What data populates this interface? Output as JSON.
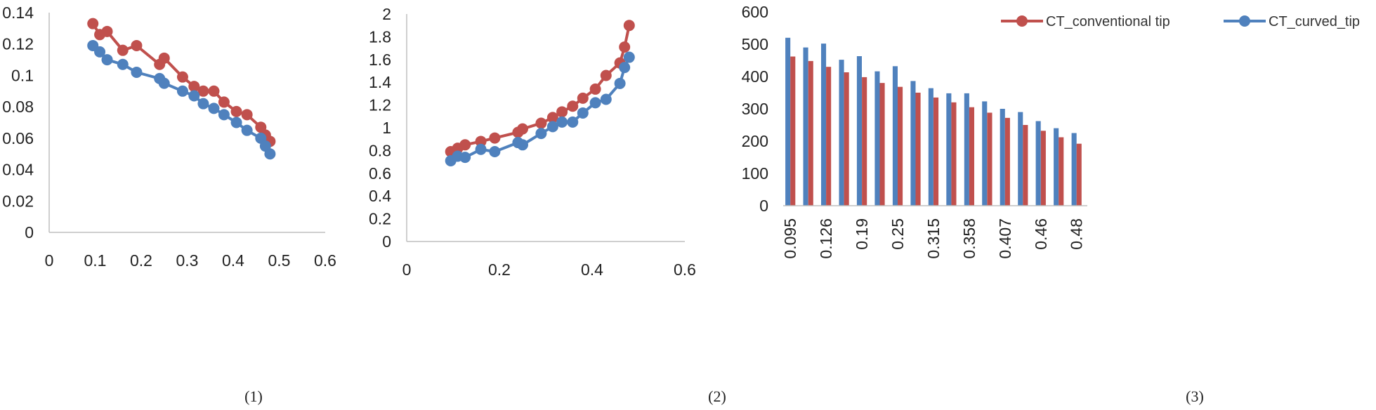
{
  "colors": {
    "conventional": "#C0504D",
    "curved": "#4F81BD",
    "axis": "#BFBFBF",
    "text": "#222222"
  },
  "chart_data": [
    {
      "type": "line",
      "caption": "(1)",
      "xlim": [
        0,
        0.6
      ],
      "ylim": [
        0,
        0.14
      ],
      "xticks": [
        0,
        0.1,
        0.2,
        0.3,
        0.4,
        0.5,
        0.6
      ],
      "xtick_labels": [
        "0",
        "0.1",
        "0.2",
        "0.3",
        "0.4",
        "0.5",
        "0.6"
      ],
      "yticks": [
        0,
        0.02,
        0.04,
        0.06,
        0.08,
        0.1,
        0.12,
        0.14
      ],
      "ytick_labels": [
        "0",
        "0.02",
        "0.04",
        "0.06",
        "0.08",
        "0.1",
        "0.12",
        "0.14"
      ],
      "series": [
        {
          "color": "#C0504D",
          "points": [
            [
              0.095,
              0.133
            ],
            [
              0.11,
              0.126
            ],
            [
              0.126,
              0.128
            ],
            [
              0.16,
              0.116
            ],
            [
              0.19,
              0.119
            ],
            [
              0.24,
              0.107
            ],
            [
              0.25,
              0.111
            ],
            [
              0.29,
              0.099
            ],
            [
              0.315,
              0.093
            ],
            [
              0.335,
              0.09
            ],
            [
              0.358,
              0.09
            ],
            [
              0.38,
              0.083
            ],
            [
              0.407,
              0.077
            ],
            [
              0.43,
              0.075
            ],
            [
              0.46,
              0.067
            ],
            [
              0.47,
              0.062
            ],
            [
              0.48,
              0.058
            ]
          ]
        },
        {
          "color": "#4F81BD",
          "points": [
            [
              0.095,
              0.119
            ],
            [
              0.11,
              0.115
            ],
            [
              0.126,
              0.11
            ],
            [
              0.16,
              0.107
            ],
            [
              0.19,
              0.102
            ],
            [
              0.24,
              0.098
            ],
            [
              0.25,
              0.095
            ],
            [
              0.29,
              0.09
            ],
            [
              0.315,
              0.087
            ],
            [
              0.335,
              0.082
            ],
            [
              0.358,
              0.079
            ],
            [
              0.38,
              0.075
            ],
            [
              0.407,
              0.07
            ],
            [
              0.43,
              0.065
            ],
            [
              0.46,
              0.06
            ],
            [
              0.47,
              0.055
            ],
            [
              0.48,
              0.05
            ]
          ]
        }
      ]
    },
    {
      "type": "line",
      "caption": "(2)",
      "xlim": [
        0,
        0.6
      ],
      "ylim": [
        0,
        2
      ],
      "xticks": [
        0,
        0.2,
        0.4,
        0.6
      ],
      "xtick_labels": [
        "0",
        "0.2",
        "0.4",
        "0.6"
      ],
      "yticks": [
        0,
        0.2,
        0.4,
        0.6,
        0.8,
        1,
        1.2,
        1.4,
        1.6,
        1.8,
        2
      ],
      "ytick_labels": [
        "0",
        "0.2",
        "0.4",
        "0.6",
        "0.8",
        "1",
        "1.2",
        "1.4",
        "1.6",
        "1.8",
        "2"
      ],
      "series": [
        {
          "color": "#C0504D",
          "points": [
            [
              0.095,
              0.79
            ],
            [
              0.11,
              0.82
            ],
            [
              0.126,
              0.85
            ],
            [
              0.16,
              0.88
            ],
            [
              0.19,
              0.91
            ],
            [
              0.24,
              0.96
            ],
            [
              0.25,
              0.99
            ],
            [
              0.29,
              1.04
            ],
            [
              0.315,
              1.09
            ],
            [
              0.335,
              1.14
            ],
            [
              0.358,
              1.19
            ],
            [
              0.38,
              1.26
            ],
            [
              0.407,
              1.34
            ],
            [
              0.43,
              1.46
            ],
            [
              0.46,
              1.57
            ],
            [
              0.47,
              1.71
            ],
            [
              0.48,
              1.9
            ]
          ]
        },
        {
          "color": "#4F81BD",
          "points": [
            [
              0.095,
              0.71
            ],
            [
              0.11,
              0.75
            ],
            [
              0.126,
              0.74
            ],
            [
              0.16,
              0.81
            ],
            [
              0.19,
              0.79
            ],
            [
              0.24,
              0.87
            ],
            [
              0.25,
              0.85
            ],
            [
              0.29,
              0.95
            ],
            [
              0.315,
              1.01
            ],
            [
              0.335,
              1.05
            ],
            [
              0.358,
              1.05
            ],
            [
              0.38,
              1.13
            ],
            [
              0.407,
              1.22
            ],
            [
              0.43,
              1.25
            ],
            [
              0.46,
              1.39
            ],
            [
              0.47,
              1.53
            ],
            [
              0.48,
              1.62
            ]
          ]
        }
      ]
    },
    {
      "type": "bar",
      "caption": "(3)",
      "ylim": [
        0,
        600
      ],
      "yticks": [
        0,
        100,
        200,
        300,
        400,
        500,
        600
      ],
      "ytick_labels": [
        "0",
        "100",
        "200",
        "300",
        "400",
        "500",
        "600"
      ],
      "categories": [
        "0.095",
        "0.11",
        "0.126",
        "0.16",
        "0.19",
        "0.24",
        "0.25",
        "0.29",
        "0.315",
        "0.335",
        "0.358",
        "0.38",
        "0.407",
        "0.43",
        "0.46",
        "0.47",
        "0.48"
      ],
      "shown_category_labels": [
        "0.095",
        "0.126",
        "0.19",
        "0.25",
        "0.315",
        "0.358",
        "0.407",
        "0.46",
        "0.48"
      ],
      "legend": [
        {
          "name": "CT_conventional tip",
          "color": "#C0504D"
        },
        {
          "name": "CT_curved_tip",
          "color": "#4F81BD"
        }
      ],
      "series": [
        {
          "name": "CT_curved_tip",
          "color": "#4F81BD",
          "values": [
            520,
            490,
            502,
            452,
            463,
            416,
            432,
            386,
            364,
            348,
            348,
            323,
            300,
            290,
            262,
            240,
            225
          ]
        },
        {
          "name": "CT_conventional tip",
          "color": "#C0504D",
          "values": [
            462,
            448,
            430,
            413,
            398,
            380,
            368,
            350,
            335,
            320,
            305,
            288,
            272,
            250,
            232,
            212,
            192
          ]
        }
      ]
    }
  ]
}
